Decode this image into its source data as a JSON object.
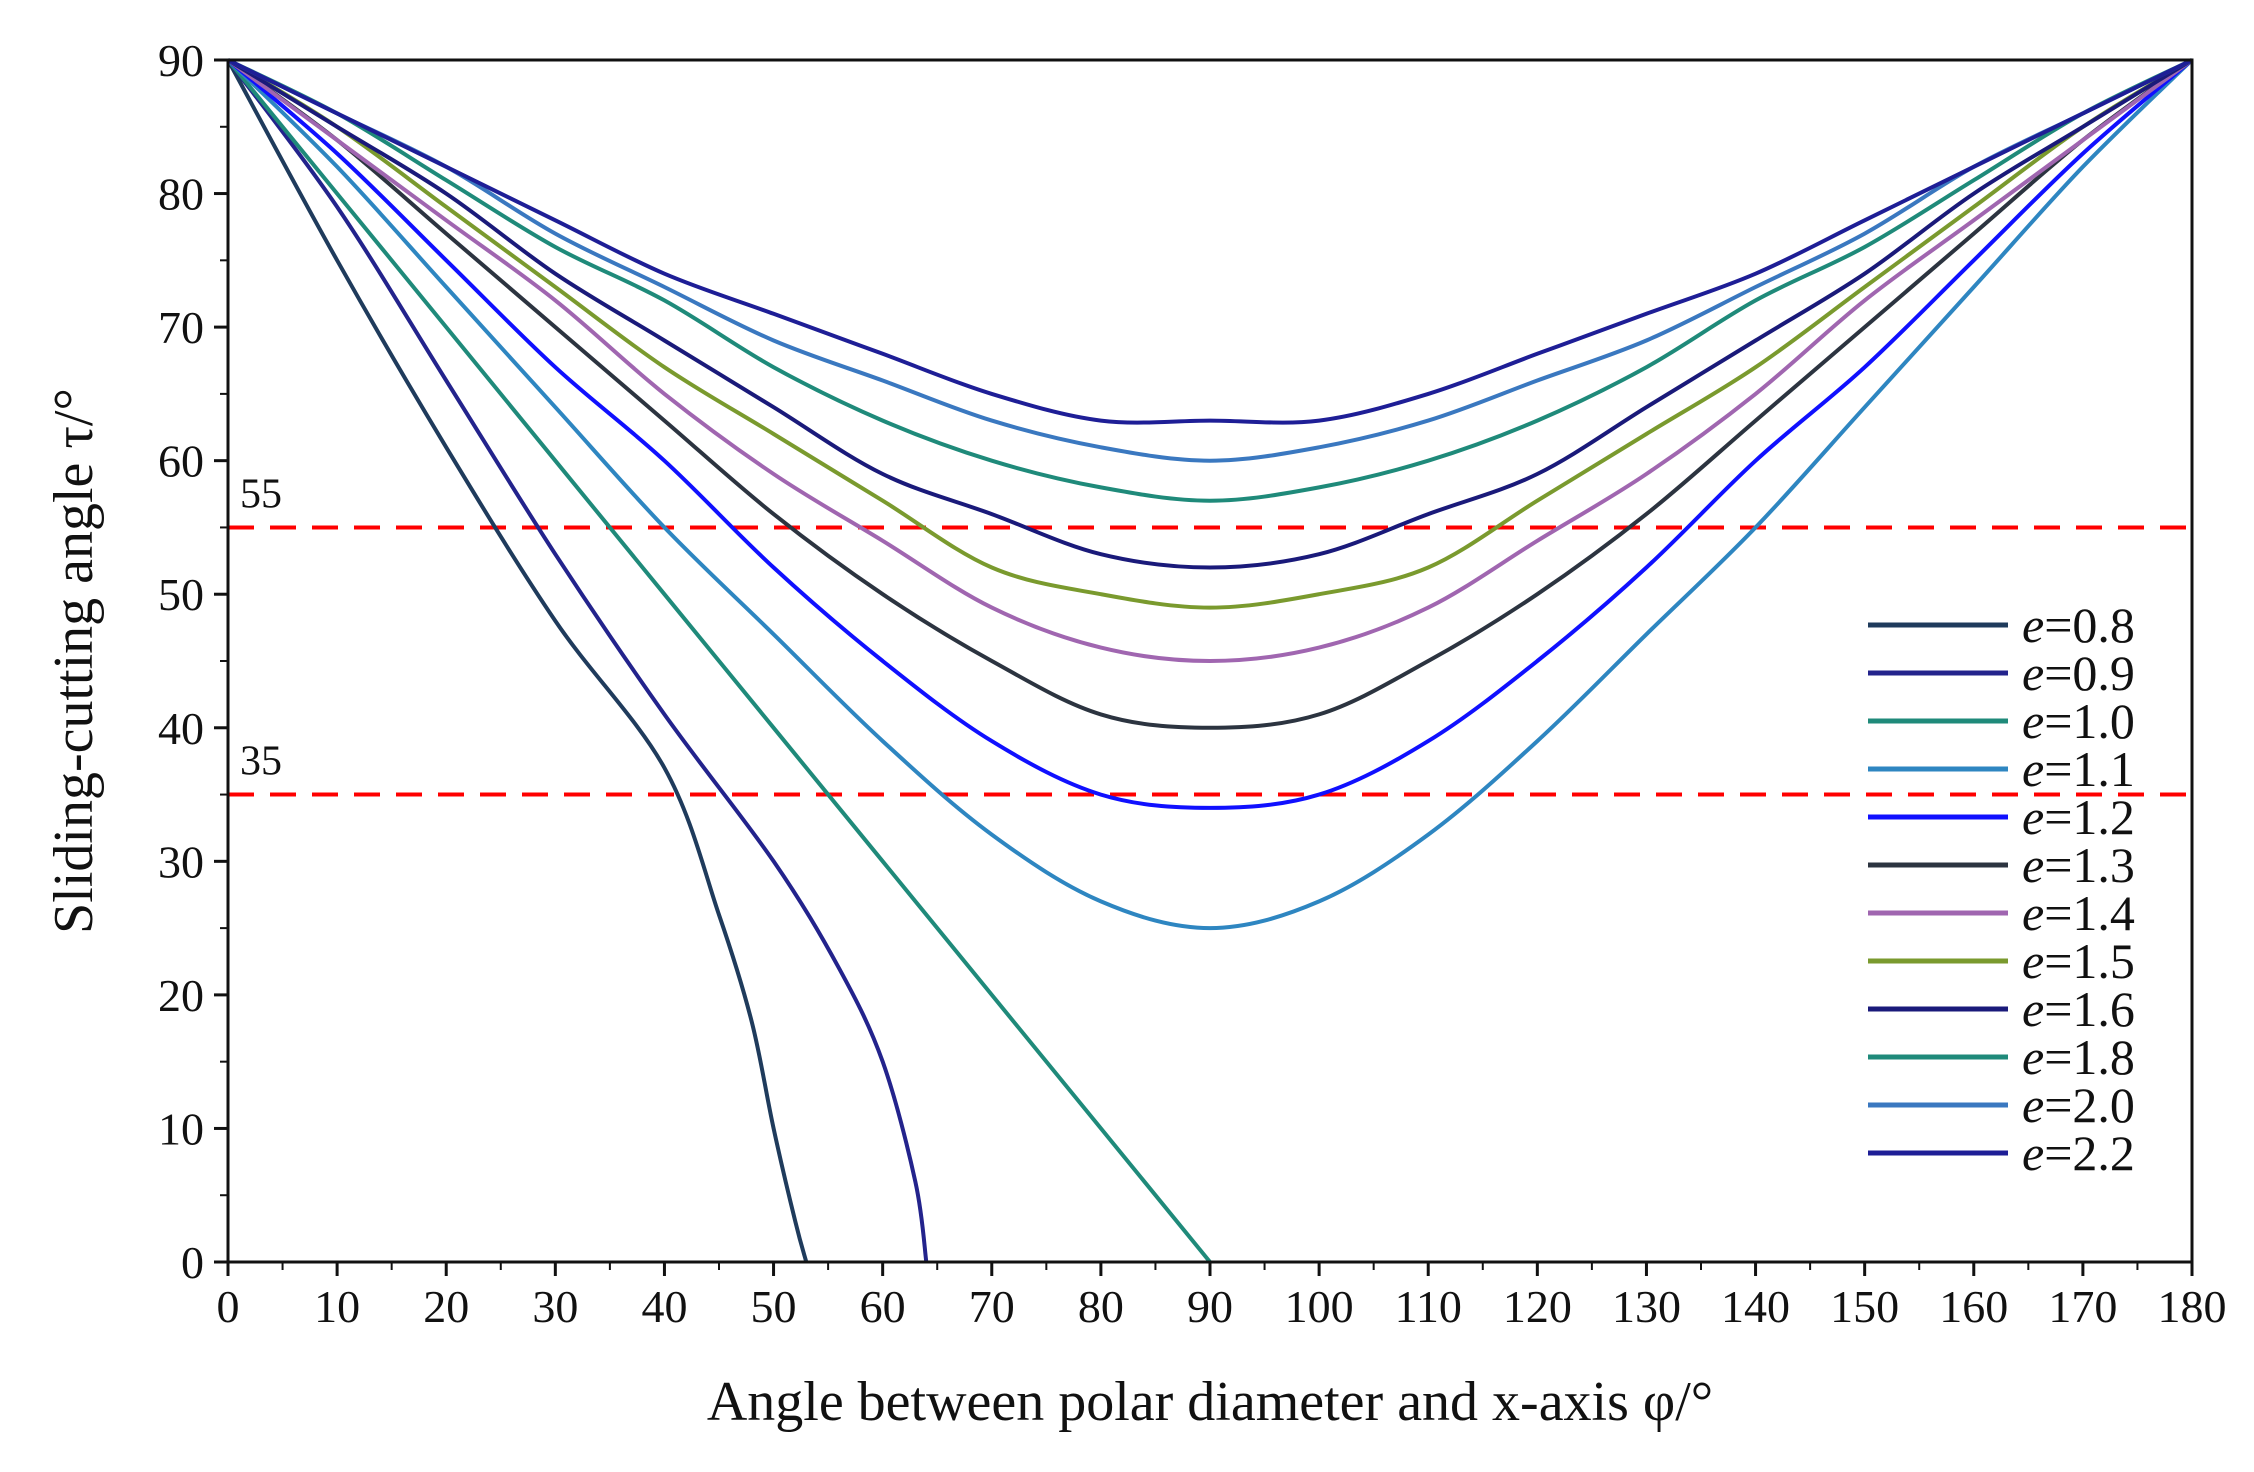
{
  "chart_data": {
    "type": "line",
    "title": "",
    "xlabel": "Angle between polar diameter and x-axis φ/°",
    "ylabel": "Sliding-cutting angle τ/°",
    "xlim": [
      0,
      180
    ],
    "ylim": [
      0,
      90
    ],
    "xticks": [
      0,
      10,
      20,
      30,
      40,
      50,
      60,
      70,
      80,
      90,
      100,
      110,
      120,
      130,
      140,
      150,
      160,
      170,
      180
    ],
    "yticks": [
      0,
      10,
      20,
      30,
      40,
      50,
      60,
      70,
      80,
      90
    ],
    "x": [
      0,
      10,
      20,
      30,
      40,
      50,
      60,
      70,
      80,
      90,
      100,
      110,
      120,
      130,
      140,
      150,
      160,
      170,
      180
    ],
    "legend_position": "bottom-right",
    "legend_prefix": "e",
    "reference_lines": [
      {
        "y": 55,
        "label": "55",
        "color": "#ff0000",
        "style": "dashed"
      },
      {
        "y": 35,
        "label": "35",
        "color": "#ff0000",
        "style": "dashed"
      }
    ],
    "series": [
      {
        "name": "=0.8",
        "color": "#1f3b5c",
        "points": [
          [
            0,
            90
          ],
          [
            10,
            75
          ],
          [
            20,
            61
          ],
          [
            30,
            48
          ],
          [
            40,
            37
          ],
          [
            45,
            26
          ],
          [
            48,
            18
          ],
          [
            50,
            10
          ],
          [
            52,
            3
          ],
          [
            53,
            0
          ]
        ]
      },
      {
        "name": "=0.9",
        "color": "#23238c",
        "points": [
          [
            0,
            90
          ],
          [
            10,
            79
          ],
          [
            20,
            66
          ],
          [
            30,
            53
          ],
          [
            40,
            41
          ],
          [
            50,
            30
          ],
          [
            56,
            22
          ],
          [
            60,
            15
          ],
          [
            63,
            6
          ],
          [
            64,
            0
          ]
        ]
      },
      {
        "name": "=1.0",
        "color": "#1f8a7a",
        "points": [
          [
            0,
            90
          ],
          [
            10,
            80
          ],
          [
            20,
            70
          ],
          [
            30,
            60
          ],
          [
            40,
            50
          ],
          [
            50,
            40
          ],
          [
            60,
            30
          ],
          [
            70,
            20
          ],
          [
            80,
            10
          ],
          [
            90,
            0
          ]
        ]
      },
      {
        "name": "=1.1",
        "color": "#2e86c1",
        "points": [
          [
            0,
            90
          ],
          [
            10,
            82
          ],
          [
            20,
            73
          ],
          [
            30,
            64
          ],
          [
            40,
            55
          ],
          [
            50,
            47
          ],
          [
            60,
            39
          ],
          [
            70,
            32
          ],
          [
            80,
            27
          ],
          [
            90,
            25
          ],
          [
            100,
            27
          ],
          [
            110,
            32
          ],
          [
            120,
            39
          ],
          [
            130,
            47
          ],
          [
            140,
            55
          ],
          [
            150,
            64
          ],
          [
            160,
            73
          ],
          [
            170,
            82
          ],
          [
            180,
            90
          ]
        ]
      },
      {
        "name": "=1.2",
        "color": "#1010ff",
        "points": [
          [
            0,
            90
          ],
          [
            10,
            83
          ],
          [
            20,
            75
          ],
          [
            30,
            67
          ],
          [
            40,
            60
          ],
          [
            50,
            52
          ],
          [
            60,
            45
          ],
          [
            70,
            39
          ],
          [
            80,
            35
          ],
          [
            90,
            34
          ],
          [
            100,
            35
          ],
          [
            110,
            39
          ],
          [
            120,
            45
          ],
          [
            130,
            52
          ],
          [
            140,
            60
          ],
          [
            150,
            67
          ],
          [
            160,
            75
          ],
          [
            170,
            83
          ],
          [
            180,
            90
          ]
        ]
      },
      {
        "name": "=1.3",
        "color": "#2c3440",
        "points": [
          [
            0,
            90
          ],
          [
            10,
            84
          ],
          [
            20,
            77
          ],
          [
            30,
            70
          ],
          [
            40,
            63
          ],
          [
            50,
            56
          ],
          [
            60,
            50
          ],
          [
            70,
            45
          ],
          [
            80,
            41
          ],
          [
            90,
            40
          ],
          [
            100,
            41
          ],
          [
            110,
            45
          ],
          [
            120,
            50
          ],
          [
            130,
            56
          ],
          [
            140,
            63
          ],
          [
            150,
            70
          ],
          [
            160,
            77
          ],
          [
            170,
            84
          ],
          [
            180,
            90
          ]
        ]
      },
      {
        "name": "=1.4",
        "color": "#a066b0",
        "points": [
          [
            0,
            90
          ],
          [
            10,
            84
          ],
          [
            20,
            78
          ],
          [
            30,
            72
          ],
          [
            40,
            65
          ],
          [
            50,
            59
          ],
          [
            60,
            54
          ],
          [
            70,
            49
          ],
          [
            80,
            46
          ],
          [
            90,
            45
          ],
          [
            100,
            46
          ],
          [
            110,
            49
          ],
          [
            120,
            54
          ],
          [
            130,
            59
          ],
          [
            140,
            65
          ],
          [
            150,
            72
          ],
          [
            160,
            78
          ],
          [
            170,
            84
          ],
          [
            180,
            90
          ]
        ]
      },
      {
        "name": "=1.5",
        "color": "#7a9a2e",
        "points": [
          [
            0,
            90
          ],
          [
            10,
            85
          ],
          [
            20,
            79
          ],
          [
            30,
            73
          ],
          [
            40,
            67
          ],
          [
            50,
            62
          ],
          [
            60,
            57
          ],
          [
            70,
            52
          ],
          [
            80,
            50
          ],
          [
            90,
            49
          ],
          [
            100,
            50
          ],
          [
            110,
            52
          ],
          [
            120,
            57
          ],
          [
            130,
            62
          ],
          [
            140,
            67
          ],
          [
            150,
            73
          ],
          [
            160,
            79
          ],
          [
            170,
            85
          ],
          [
            180,
            90
          ]
        ]
      },
      {
        "name": "=1.6",
        "color": "#1a1a7a",
        "points": [
          [
            0,
            90
          ],
          [
            10,
            85
          ],
          [
            20,
            80
          ],
          [
            30,
            74
          ],
          [
            40,
            69
          ],
          [
            50,
            64
          ],
          [
            60,
            59
          ],
          [
            70,
            56
          ],
          [
            80,
            53
          ],
          [
            90,
            52
          ],
          [
            100,
            53
          ],
          [
            110,
            56
          ],
          [
            120,
            59
          ],
          [
            130,
            64
          ],
          [
            140,
            69
          ],
          [
            150,
            74
          ],
          [
            160,
            80
          ],
          [
            170,
            85
          ],
          [
            180,
            90
          ]
        ]
      },
      {
        "name": "=1.8",
        "color": "#1f8a7a",
        "points": [
          [
            0,
            90
          ],
          [
            10,
            86
          ],
          [
            20,
            81
          ],
          [
            30,
            76
          ],
          [
            40,
            72
          ],
          [
            50,
            67
          ],
          [
            60,
            63
          ],
          [
            70,
            60
          ],
          [
            80,
            58
          ],
          [
            90,
            57
          ],
          [
            100,
            58
          ],
          [
            110,
            60
          ],
          [
            120,
            63
          ],
          [
            130,
            67
          ],
          [
            140,
            72
          ],
          [
            150,
            76
          ],
          [
            160,
            81
          ],
          [
            170,
            86
          ],
          [
            180,
            90
          ]
        ]
      },
      {
        "name": "=2.0",
        "color": "#3a78c0",
        "points": [
          [
            0,
            90
          ],
          [
            10,
            86
          ],
          [
            20,
            82
          ],
          [
            30,
            77
          ],
          [
            40,
            73
          ],
          [
            50,
            69
          ],
          [
            60,
            66
          ],
          [
            70,
            63
          ],
          [
            80,
            61
          ],
          [
            90,
            60
          ],
          [
            100,
            61
          ],
          [
            110,
            63
          ],
          [
            120,
            66
          ],
          [
            130,
            69
          ],
          [
            140,
            73
          ],
          [
            150,
            77
          ],
          [
            160,
            82
          ],
          [
            170,
            86
          ],
          [
            180,
            90
          ]
        ]
      },
      {
        "name": "=2.2",
        "color": "#1e1e96",
        "points": [
          [
            0,
            90
          ],
          [
            10,
            86
          ],
          [
            20,
            82
          ],
          [
            30,
            78
          ],
          [
            40,
            74
          ],
          [
            50,
            71
          ],
          [
            60,
            68
          ],
          [
            70,
            65
          ],
          [
            80,
            63
          ],
          [
            90,
            63
          ],
          [
            100,
            63
          ],
          [
            110,
            65
          ],
          [
            120,
            68
          ],
          [
            130,
            71
          ],
          [
            140,
            74
          ],
          [
            150,
            78
          ],
          [
            160,
            82
          ],
          [
            170,
            86
          ],
          [
            180,
            90
          ]
        ]
      }
    ]
  }
}
